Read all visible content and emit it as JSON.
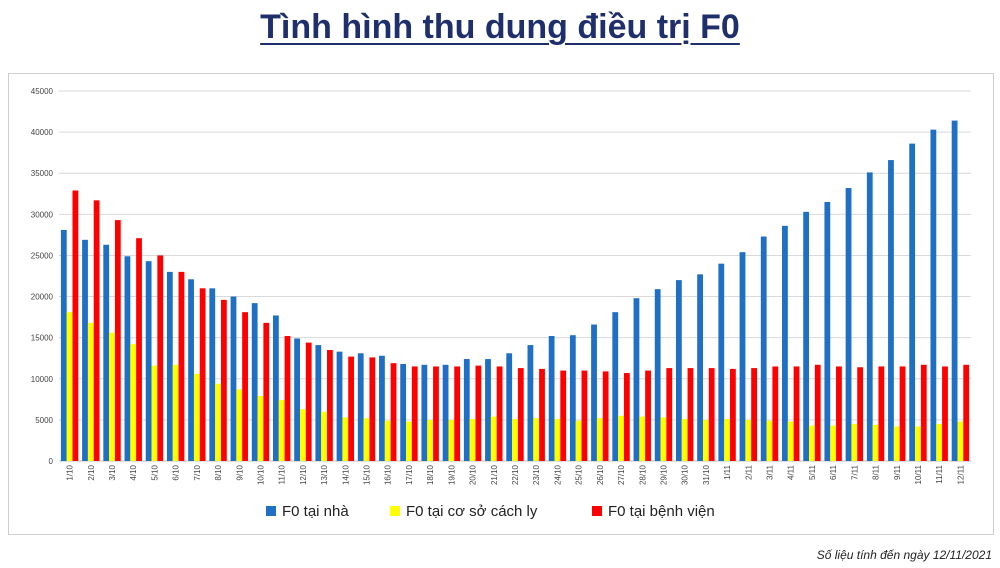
{
  "title": "Tình hình thu dung điều trị F0",
  "footnote": "Số liệu tính đến ngày 12/11/2021",
  "chart_data": {
    "type": "bar",
    "title": "",
    "xlabel": "",
    "ylabel": "",
    "ylim": [
      0,
      45000
    ],
    "yticks": [
      0,
      5000,
      10000,
      15000,
      20000,
      25000,
      30000,
      35000,
      40000,
      45000
    ],
    "grid": true,
    "legend_position": "bottom",
    "categories": [
      "1/10",
      "2/10",
      "3/10",
      "4/10",
      "5/10",
      "6/10",
      "7/10",
      "8/10",
      "9/10",
      "10/10",
      "11/10",
      "12/10",
      "13/10",
      "14/10",
      "15/10",
      "16/10",
      "17/10",
      "18/10",
      "19/10",
      "20/10",
      "21/10",
      "22/10",
      "23/10",
      "24/10",
      "25/10",
      "26/10",
      "27/10",
      "28/10",
      "29/10",
      "30/10",
      "31/10",
      "1/11",
      "2/11",
      "3/11",
      "4/11",
      "5/11",
      "6/11",
      "7/11",
      "8/11",
      "9/11",
      "10/11",
      "11/11",
      "12/11"
    ],
    "series": [
      {
        "name": "F0 tại nhà",
        "color": "#1f6fc5",
        "values": [
          28100,
          26900,
          26300,
          24900,
          24300,
          23000,
          22100,
          21000,
          20000,
          19200,
          17700,
          14900,
          14100,
          13300,
          13100,
          12800,
          11800,
          11700,
          11700,
          12400,
          12400,
          13100,
          14100,
          15200,
          15300,
          16600,
          18100,
          19800,
          20900,
          22000,
          22700,
          24000,
          25400,
          27300,
          28600,
          30300,
          31500,
          33200,
          35100,
          36600,
          38600,
          40300,
          41400
        ]
      },
      {
        "name": "F0 tại cơ sở cách ly",
        "color": "#ffff00",
        "values": [
          18100,
          16800,
          15600,
          14200,
          11600,
          11700,
          10600,
          9400,
          8700,
          7900,
          7400,
          6300,
          6000,
          5300,
          5200,
          4900,
          4800,
          5000,
          5000,
          5100,
          5400,
          5100,
          5200,
          5100,
          4900,
          5200,
          5500,
          5400,
          5300,
          5100,
          5000,
          5100,
          5000,
          4900,
          4800,
          4300,
          4300,
          4500,
          4400,
          4200,
          4200,
          4500,
          4800
        ]
      },
      {
        "name": "F0 tại bệnh viện",
        "color": "#ff0000",
        "values": [
          32900,
          31700,
          29300,
          27100,
          25000,
          23000,
          21000,
          19600,
          18100,
          16800,
          15200,
          14400,
          13500,
          12700,
          12600,
          11900,
          11500,
          11500,
          11500,
          11600,
          11500,
          11300,
          11200,
          11000,
          11000,
          10900,
          10700,
          11000,
          11300,
          11300,
          11300,
          11200,
          11300,
          11500,
          11500,
          11700,
          11500,
          11400,
          11500,
          11500,
          11700,
          11500,
          11700
        ]
      }
    ]
  }
}
